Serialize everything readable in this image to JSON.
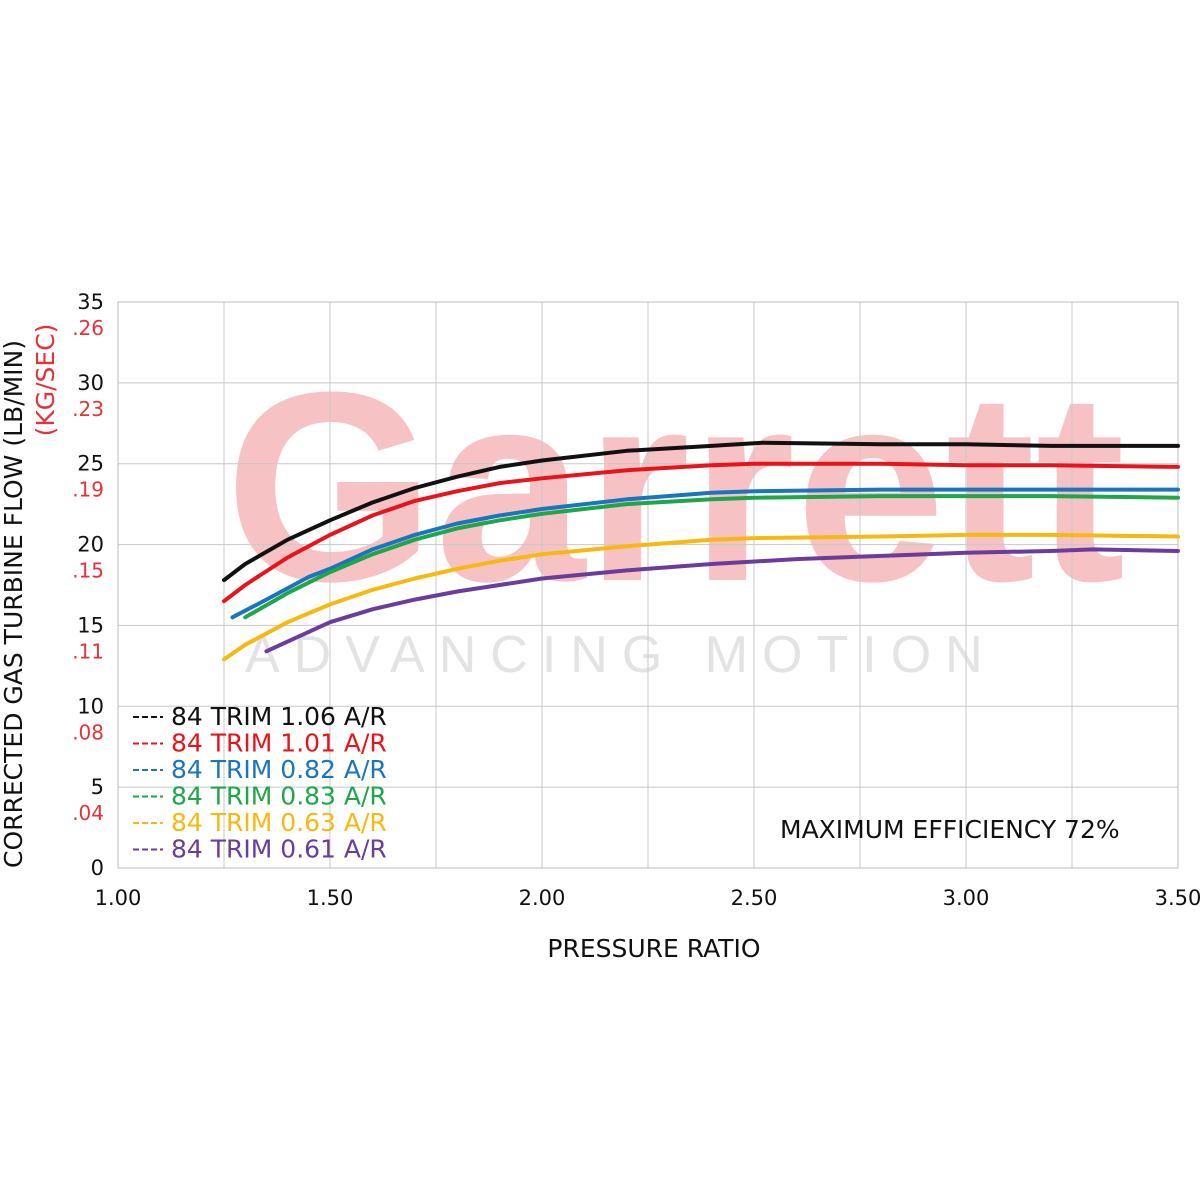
{
  "watermark": {
    "logo": "Garrett",
    "tagline": "ADVANCING MOTION"
  },
  "annotation": "MAXIMUM EFFICIENCY 72%",
  "chart_data": {
    "type": "line",
    "xlabel": "PRESSURE RATIO",
    "ylabel": "CORRECTED GAS TURBINE FLOW (LB/MIN)",
    "ylabel_secondary": "(KG/SEC)",
    "xlim": [
      1.0,
      3.5
    ],
    "ylim": [
      0,
      35
    ],
    "x_ticks": [
      "1.00",
      "1.50",
      "2.00",
      "2.50",
      "3.00",
      "3.50"
    ],
    "y_ticks": [
      "0",
      "5",
      "10",
      "15",
      "20",
      "25",
      "30",
      "35"
    ],
    "y_ticks_secondary": [
      ".04",
      ".08",
      ".11",
      ".15",
      ".19",
      ".23",
      ".26"
    ],
    "grid": true,
    "legend_position": "bottom-left",
    "series": [
      {
        "name": "84 TRIM 1.06 A/R",
        "color": "#111111",
        "x": [
          1.25,
          1.3,
          1.4,
          1.5,
          1.6,
          1.7,
          1.8,
          1.9,
          2.0,
          2.2,
          2.4,
          2.52,
          2.8,
          3.0,
          3.2,
          3.5
        ],
        "y": [
          17.8,
          18.8,
          20.3,
          21.5,
          22.6,
          23.5,
          24.2,
          24.8,
          25.2,
          25.8,
          26.1,
          26.3,
          26.2,
          26.2,
          26.1,
          26.1
        ]
      },
      {
        "name": "84 TRIM 1.01 A/R",
        "color": "#e8141c",
        "x": [
          1.25,
          1.3,
          1.4,
          1.5,
          1.6,
          1.7,
          1.8,
          1.9,
          2.0,
          2.2,
          2.4,
          2.5,
          2.8,
          3.0,
          3.2,
          3.5
        ],
        "y": [
          16.5,
          17.5,
          19.2,
          20.6,
          21.8,
          22.7,
          23.3,
          23.8,
          24.1,
          24.6,
          24.9,
          25.0,
          25.0,
          24.9,
          24.9,
          24.8
        ]
      },
      {
        "name": "84 TRIM 0.82 A/R",
        "color": "#1c75bc",
        "x": [
          1.27,
          1.35,
          1.45,
          1.5,
          1.6,
          1.7,
          1.8,
          1.9,
          2.0,
          2.2,
          2.4,
          2.5,
          2.8,
          3.0,
          3.2,
          3.5
        ],
        "y": [
          15.5,
          16.6,
          18.0,
          18.5,
          19.7,
          20.6,
          21.3,
          21.8,
          22.2,
          22.8,
          23.2,
          23.3,
          23.4,
          23.4,
          23.4,
          23.4
        ]
      },
      {
        "name": "84 TRIM 0.83 A/R",
        "color": "#1fa64a",
        "x": [
          1.3,
          1.4,
          1.5,
          1.6,
          1.7,
          1.8,
          1.9,
          2.0,
          2.2,
          2.4,
          2.5,
          2.8,
          3.0,
          3.2,
          3.5
        ],
        "y": [
          15.5,
          17.0,
          18.3,
          19.4,
          20.3,
          21.0,
          21.5,
          21.9,
          22.5,
          22.8,
          22.9,
          23.0,
          23.0,
          23.0,
          22.9
        ]
      },
      {
        "name": "84 TRIM 0.63 A/R",
        "color": "#f7b90f",
        "x": [
          1.25,
          1.3,
          1.4,
          1.5,
          1.6,
          1.7,
          1.8,
          1.9,
          2.0,
          2.2,
          2.4,
          2.5,
          2.8,
          3.0,
          3.2,
          3.5
        ],
        "y": [
          12.9,
          13.8,
          15.2,
          16.3,
          17.2,
          17.9,
          18.5,
          19.0,
          19.4,
          19.9,
          20.3,
          20.4,
          20.5,
          20.6,
          20.6,
          20.5
        ]
      },
      {
        "name": "84 TRIM 0.61 A/R",
        "color": "#6a3d9a",
        "x": [
          1.35,
          1.4,
          1.5,
          1.6,
          1.7,
          1.8,
          1.9,
          2.0,
          2.2,
          2.4,
          2.6,
          2.8,
          3.0,
          3.2,
          3.3,
          3.5
        ],
        "y": [
          13.4,
          14.0,
          15.2,
          16.0,
          16.6,
          17.1,
          17.5,
          17.9,
          18.4,
          18.8,
          19.1,
          19.3,
          19.5,
          19.6,
          19.7,
          19.6
        ]
      }
    ]
  }
}
